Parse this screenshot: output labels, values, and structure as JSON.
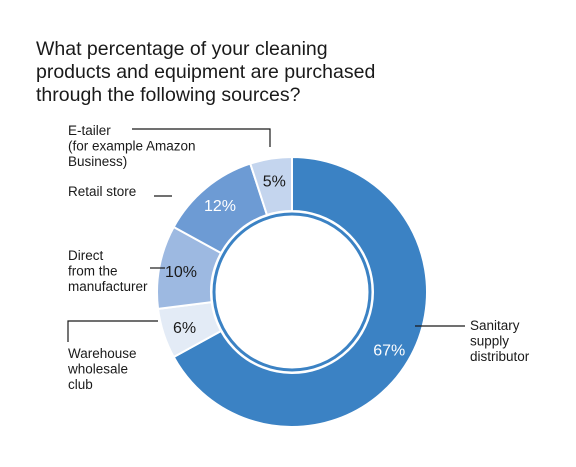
{
  "chart_data": {
    "type": "pie",
    "variant": "donut",
    "title_lines": [
      "What percentage of your cleaning",
      "products and equipment are purchased",
      "through the following sources?"
    ],
    "slices": [
      {
        "label": "Sanitary supply distributor",
        "label_lines": [
          "Sanitary",
          "supply",
          "distributor"
        ],
        "value": 67,
        "display": "67%",
        "color": "#3b82c4"
      },
      {
        "label": "Warehouse wholesale club",
        "label_lines": [
          "Warehouse",
          "wholesale",
          "club"
        ],
        "value": 6,
        "display": "6%",
        "color": "#e3ebf6"
      },
      {
        "label": "Direct from the manufacturer",
        "label_lines": [
          "Direct",
          "from the",
          "manufacturer"
        ],
        "value": 10,
        "display": "10%",
        "color": "#9db9e1"
      },
      {
        "label": "Retail store",
        "label_lines": [
          "Retail store"
        ],
        "value": 12,
        "display": "12%",
        "color": "#6d9bd4"
      },
      {
        "label": "E-tailer (for example Amazon Business)",
        "label_lines": [
          "E-tailer",
          "(for example Amazon",
          "Business)"
        ],
        "value": 5,
        "display": "5%",
        "color": "#c4d5ee"
      }
    ]
  }
}
